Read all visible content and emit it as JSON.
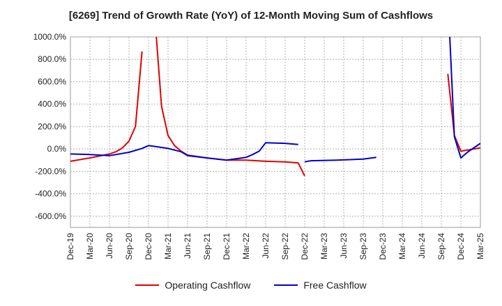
{
  "chart_data": {
    "type": "line",
    "title": "[6269]  Trend of Growth Rate (YoY) of 12-Month Moving Sum of Cashflows",
    "ylim": [
      -700,
      1000
    ],
    "yticks": [
      1000,
      800,
      600,
      400,
      200,
      0,
      -200,
      -400,
      -600
    ],
    "ytick_labels": [
      "1000.0%",
      "800.0%",
      "600.0%",
      "400.0%",
      "200.0%",
      "0.0%",
      "-200.0%",
      "-400.0%",
      "-600.0%"
    ],
    "xtick_labels": [
      "Dec-19",
      "Mar-20",
      "Jun-20",
      "Sep-20",
      "Dec-20",
      "Mar-21",
      "Jun-21",
      "Sep-21",
      "Dec-21",
      "Mar-22",
      "Jun-22",
      "Sep-22",
      "Dec-22",
      "Mar-23",
      "Jun-23",
      "Sep-23",
      "Dec-23",
      "Mar-24",
      "Jun-24",
      "Sep-24",
      "Dec-24",
      "Mar-25"
    ],
    "x_range_months": [
      0,
      63
    ],
    "grid": true,
    "legend_position": "bottom",
    "series": [
      {
        "name": "Operating Cashflow",
        "color": "#e00000",
        "segments": [
          [
            [
              0,
              -110
            ],
            [
              3,
              -80
            ],
            [
              6,
              -45
            ],
            [
              7,
              -25
            ],
            [
              8,
              10
            ],
            [
              9,
              70
            ],
            [
              10,
              200
            ],
            [
              11,
              870
            ]
          ],
          [
            [
              13.2,
              1000
            ],
            [
              14,
              380
            ],
            [
              15,
              120
            ],
            [
              16,
              30
            ],
            [
              17,
              -20
            ],
            [
              18,
              -55
            ],
            [
              21,
              -80
            ],
            [
              24,
              -100
            ],
            [
              27,
              -100
            ],
            [
              30,
              -110
            ],
            [
              33,
              -115
            ],
            [
              35,
              -125
            ],
            [
              36,
              -240
            ]
          ],
          [
            [
              58,
              670
            ],
            [
              59,
              120
            ],
            [
              60,
              -20
            ],
            [
              61,
              -10
            ],
            [
              63,
              10
            ]
          ]
        ]
      },
      {
        "name": "Free Cashflow",
        "color": "#0000cc",
        "segments": [
          [
            [
              0,
              -45
            ],
            [
              3,
              -50
            ],
            [
              6,
              -60
            ],
            [
              9,
              -30
            ],
            [
              11,
              5
            ],
            [
              12,
              30
            ],
            [
              15,
              5
            ],
            [
              17,
              -25
            ],
            [
              18,
              -60
            ],
            [
              21,
              -80
            ],
            [
              24,
              -100
            ],
            [
              27,
              -75
            ],
            [
              28,
              -50
            ],
            [
              29,
              -20
            ],
            [
              30,
              55
            ],
            [
              33,
              50
            ],
            [
              35,
              40
            ]
          ],
          [
            [
              36,
              -115
            ],
            [
              37,
              -105
            ],
            [
              41,
              -100
            ],
            [
              45,
              -90
            ],
            [
              47,
              -75
            ]
          ],
          [
            [
              58.3,
              1000
            ],
            [
              59,
              110
            ],
            [
              60,
              -80
            ],
            [
              61,
              -30
            ],
            [
              63,
              50
            ]
          ]
        ]
      }
    ]
  }
}
